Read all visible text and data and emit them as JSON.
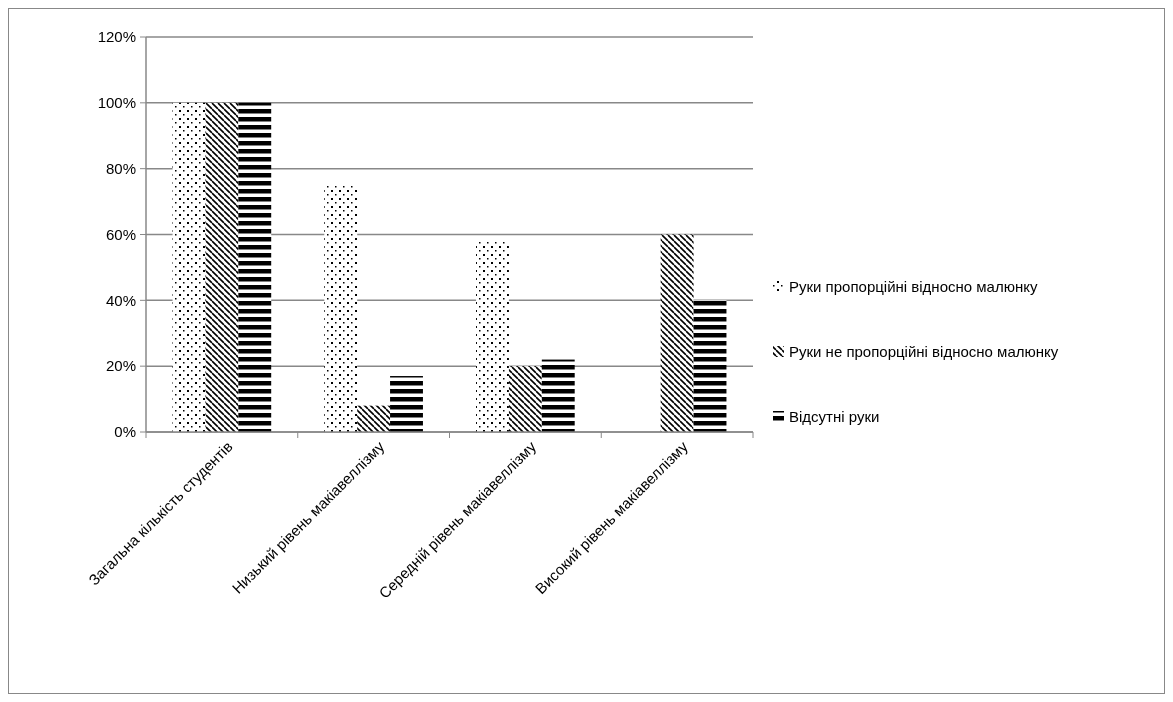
{
  "chart_data": {
    "type": "bar",
    "categories": [
      "Загальна кількість студентів",
      "Низький рівень макіавеллізму",
      "Середній рівень макіавеллізму",
      "Високий рівень макіавеллізму"
    ],
    "series": [
      {
        "name": "Руки пропорційні відносно малюнку",
        "color": "#000000",
        "values": [
          100,
          75,
          58,
          0
        ]
      },
      {
        "name": "Руки не пропорційні відносно малюнку",
        "color": "#000000",
        "values": [
          100,
          8,
          20,
          60
        ]
      },
      {
        "name": "Відсутні руки",
        "color": "#000000",
        "values": [
          100,
          17,
          22,
          40
        ]
      }
    ],
    "ylim": [
      0,
      120
    ],
    "yticks": [
      {
        "value": 0,
        "label": "0%"
      },
      {
        "value": 20,
        "label": "20%"
      },
      {
        "value": 40,
        "label": "40%"
      },
      {
        "value": 60,
        "label": "60%"
      },
      {
        "value": 80,
        "label": "80%"
      },
      {
        "value": 100,
        "label": "100%"
      },
      {
        "value": 120,
        "label": "120%"
      }
    ],
    "grid": "y",
    "legend": "right"
  }
}
